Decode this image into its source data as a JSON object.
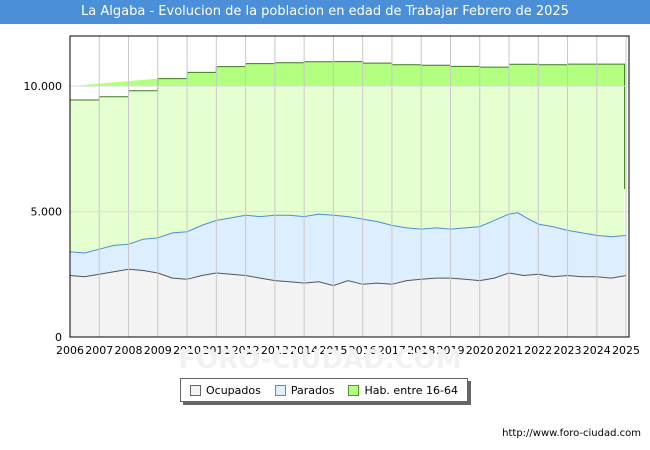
{
  "title": "La Algaba - Evolucion de la poblacion en edad de Trabajar Febrero de 2025",
  "source_url": "http://www.foro-ciudad.com",
  "watermark": "FORO-CIUDAD.COM",
  "chart_data": {
    "type": "area",
    "title": "La Algaba - Evolucion de la poblacion en edad de Trabajar Febrero de 2025",
    "xlabel": "",
    "ylabel": "",
    "xlim": [
      2006,
      2025.1
    ],
    "ylim": [
      0,
      12000
    ],
    "x_ticks": [
      "2006",
      "2007",
      "2008",
      "2009",
      "2010",
      "2011",
      "2012",
      "2013",
      "2014",
      "2015",
      "2016",
      "2017",
      "2018",
      "2019",
      "2020",
      "2021",
      "2022",
      "2023",
      "2024",
      "2025"
    ],
    "y_ticks": [
      {
        "value": 0,
        "label": "0"
      },
      {
        "value": 5000,
        "label": "5.000"
      },
      {
        "value": 10000,
        "label": "10.000"
      }
    ],
    "grid": true,
    "legend_position": "bottom",
    "series": [
      {
        "name": "Hab. entre 16-64",
        "color": "#b3ff80",
        "fill": "#e6ffd1",
        "steps": [
          [
            2006,
            9450
          ],
          [
            2007,
            9580
          ],
          [
            2008,
            9820
          ],
          [
            2009,
            10300
          ],
          [
            2010,
            10550
          ],
          [
            2011,
            10780
          ],
          [
            2012,
            10900
          ],
          [
            2013,
            10930
          ],
          [
            2014,
            10970
          ],
          [
            2015,
            10980
          ],
          [
            2016,
            10920
          ],
          [
            2017,
            10850
          ],
          [
            2018,
            10830
          ],
          [
            2019,
            10790
          ],
          [
            2020,
            10760
          ],
          [
            2021,
            10870
          ],
          [
            2022,
            10850
          ],
          [
            2023,
            10880
          ],
          [
            2024,
            10880
          ]
        ],
        "end": [
          2024,
          5900
        ]
      },
      {
        "name": "Parados",
        "color": "#4a8fd8",
        "fill": "#ddeeff",
        "values": [
          [
            2006.0,
            3400
          ],
          [
            2006.5,
            3350
          ],
          [
            2007.0,
            3500
          ],
          [
            2007.5,
            3650
          ],
          [
            2008.0,
            3700
          ],
          [
            2008.5,
            3900
          ],
          [
            2009.0,
            3950
          ],
          [
            2009.5,
            4150
          ],
          [
            2010.0,
            4200
          ],
          [
            2010.5,
            4450
          ],
          [
            2011.0,
            4650
          ],
          [
            2011.5,
            4750
          ],
          [
            2012.0,
            4850
          ],
          [
            2012.5,
            4800
          ],
          [
            2013.0,
            4850
          ],
          [
            2013.5,
            4850
          ],
          [
            2014.0,
            4800
          ],
          [
            2014.5,
            4900
          ],
          [
            2015.0,
            4850
          ],
          [
            2015.5,
            4800
          ],
          [
            2016.0,
            4700
          ],
          [
            2016.5,
            4600
          ],
          [
            2017.0,
            4450
          ],
          [
            2017.5,
            4350
          ],
          [
            2018.0,
            4300
          ],
          [
            2018.5,
            4350
          ],
          [
            2019.0,
            4300
          ],
          [
            2019.5,
            4350
          ],
          [
            2020.0,
            4400
          ],
          [
            2020.5,
            4650
          ],
          [
            2021.0,
            4900
          ],
          [
            2021.3,
            4950
          ],
          [
            2021.6,
            4750
          ],
          [
            2022.0,
            4500
          ],
          [
            2022.5,
            4400
          ],
          [
            2023.0,
            4250
          ],
          [
            2023.5,
            4150
          ],
          [
            2024.0,
            4050
          ],
          [
            2024.5,
            4000
          ],
          [
            2025.0,
            4050
          ]
        ]
      },
      {
        "name": "Ocupados",
        "color": "#888888",
        "fill": "#f3f3f3",
        "values": [
          [
            2006.0,
            2450
          ],
          [
            2006.5,
            2400
          ],
          [
            2007.0,
            2500
          ],
          [
            2007.5,
            2600
          ],
          [
            2008.0,
            2700
          ],
          [
            2008.5,
            2650
          ],
          [
            2009.0,
            2550
          ],
          [
            2009.5,
            2350
          ],
          [
            2010.0,
            2300
          ],
          [
            2010.5,
            2450
          ],
          [
            2011.0,
            2550
          ],
          [
            2011.5,
            2500
          ],
          [
            2012.0,
            2450
          ],
          [
            2012.5,
            2350
          ],
          [
            2013.0,
            2250
          ],
          [
            2013.5,
            2200
          ],
          [
            2014.0,
            2150
          ],
          [
            2014.5,
            2200
          ],
          [
            2015.0,
            2050
          ],
          [
            2015.5,
            2250
          ],
          [
            2016.0,
            2100
          ],
          [
            2016.5,
            2150
          ],
          [
            2017.0,
            2100
          ],
          [
            2017.5,
            2250
          ],
          [
            2018.0,
            2300
          ],
          [
            2018.5,
            2350
          ],
          [
            2019.0,
            2350
          ],
          [
            2019.5,
            2300
          ],
          [
            2020.0,
            2250
          ],
          [
            2020.5,
            2350
          ],
          [
            2021.0,
            2550
          ],
          [
            2021.5,
            2450
          ],
          [
            2022.0,
            2500
          ],
          [
            2022.5,
            2400
          ],
          [
            2023.0,
            2450
          ],
          [
            2023.5,
            2400
          ],
          [
            2024.0,
            2400
          ],
          [
            2024.5,
            2350
          ],
          [
            2025.0,
            2450
          ]
        ]
      }
    ]
  }
}
